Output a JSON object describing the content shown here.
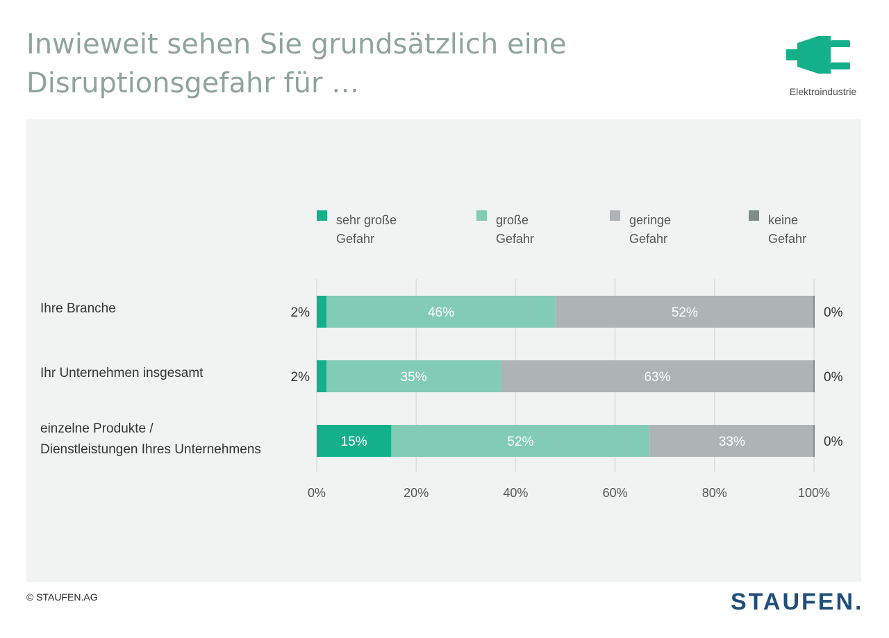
{
  "header": {
    "title_line1": "Inwieweit sehen Sie grundsätzlich eine",
    "title_line2": "Disruptionsgefahr für …",
    "industry_label": "Elektroindustrie",
    "industry_icon": "plug-icon"
  },
  "footer": {
    "copyright": "© STAUFEN.AG",
    "brand": "STAUFEN."
  },
  "colors": {
    "sehr_grosse": "#14b08a",
    "grosse": "#82ccb5",
    "geringe": "#aeb4b5",
    "keine": "#7f8c8c",
    "title": "#8ea49c",
    "panel": "#f1f2f2",
    "brand": "#1f4e79"
  },
  "chart_data": {
    "type": "bar",
    "orientation": "horizontal",
    "stacked": true,
    "categories": [
      "Ihre Branche",
      "Ihr Unternehmen insgesamt",
      "einzelne Produkte / Dienstleistungen Ihres Unternehmens"
    ],
    "series": [
      {
        "name": "sehr große Gefahr",
        "values": [
          2,
          2,
          15
        ]
      },
      {
        "name": "große Gefahr",
        "values": [
          46,
          35,
          52
        ]
      },
      {
        "name": "geringe Gefahr",
        "values": [
          52,
          63,
          33
        ]
      },
      {
        "name": "keine Gefahr",
        "values": [
          0,
          0,
          0
        ]
      }
    ],
    "value_labels": [
      [
        "2%",
        "46%",
        "52%",
        "0%"
      ],
      [
        "2%",
        "35%",
        "63%",
        "0%"
      ],
      [
        "15%",
        "52%",
        "33%",
        "0%"
      ]
    ],
    "xlim": [
      0,
      100
    ],
    "xticks": [
      "0%",
      "20%",
      "40%",
      "60%",
      "80%",
      "100%"
    ],
    "grid": true,
    "legend_position": "top"
  }
}
